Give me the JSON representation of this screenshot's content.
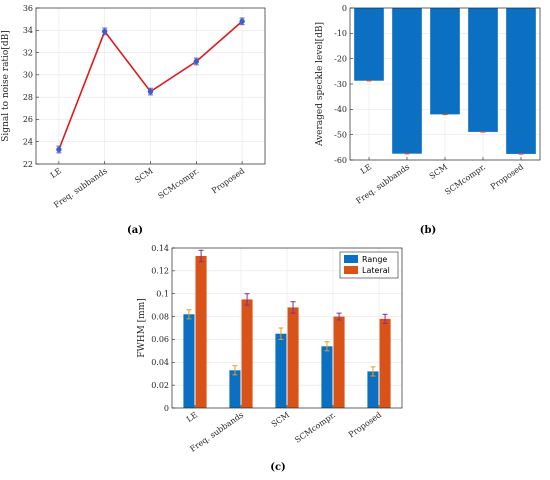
{
  "colors": {
    "line": "#e0191b",
    "marker": "#3a5fcd",
    "errorbar_a": "#5b5bbf",
    "bar_blue": "#0b6fc2",
    "bar_orange": "#d95319",
    "err_orange": "#e0a020",
    "err_purple": "#7e2f8e",
    "grid": "#e6e6e6",
    "axis": "#262626"
  },
  "panels": {
    "a_label": "(a)",
    "b_label": "(b)",
    "c_label": "(c)"
  },
  "chart_data": [
    {
      "type": "line",
      "categories": [
        "LE",
        "Freq. subbands",
        "SCM",
        "SCMcompr.",
        "Proposed"
      ],
      "series": [
        {
          "values": [
            23.3,
            33.9,
            28.5,
            31.2,
            34.8
          ],
          "errors": [
            0.3,
            0.3,
            0.3,
            0.3,
            0.3
          ]
        }
      ],
      "ylabel": "Signal to noise ratio[dB]",
      "ylim": [
        22,
        36
      ],
      "yticks": [
        22,
        24,
        26,
        28,
        30,
        32,
        34,
        36
      ],
      "grid": true
    },
    {
      "type": "bar",
      "categories": [
        "LE",
        "Freq. subbands",
        "SCM",
        "SCMcompr.",
        "Proposed"
      ],
      "series": [
        {
          "values": [
            -28.7,
            -57.5,
            -42.0,
            -48.9,
            -57.6
          ],
          "errors": [
            0.4,
            0.4,
            0.4,
            0.4,
            0.4
          ]
        }
      ],
      "ylabel": "Averaged speckle level[dB]",
      "ylim": [
        -60,
        0
      ],
      "yticks": [
        0,
        -10,
        -20,
        -30,
        -40,
        -50,
        -60
      ],
      "grid": true
    },
    {
      "type": "bar",
      "categories": [
        "LE",
        "Freq. subbands",
        "SCM",
        "SCMcompr.",
        "Proposed"
      ],
      "series": [
        {
          "name": "Range",
          "values": [
            0.082,
            0.033,
            0.065,
            0.054,
            0.032
          ],
          "errors": [
            0.004,
            0.004,
            0.005,
            0.004,
            0.004
          ]
        },
        {
          "name": "Lateral",
          "values": [
            0.133,
            0.095,
            0.088,
            0.08,
            0.078
          ],
          "errors": [
            0.005,
            0.005,
            0.005,
            0.003,
            0.004
          ]
        }
      ],
      "ylabel": "FWHM [mm]",
      "ylim": [
        0,
        0.14
      ],
      "yticks": [
        0,
        0.02,
        0.04,
        0.06,
        0.08,
        0.1,
        0.12,
        0.14
      ],
      "legend": "top-right",
      "grid": true
    }
  ]
}
